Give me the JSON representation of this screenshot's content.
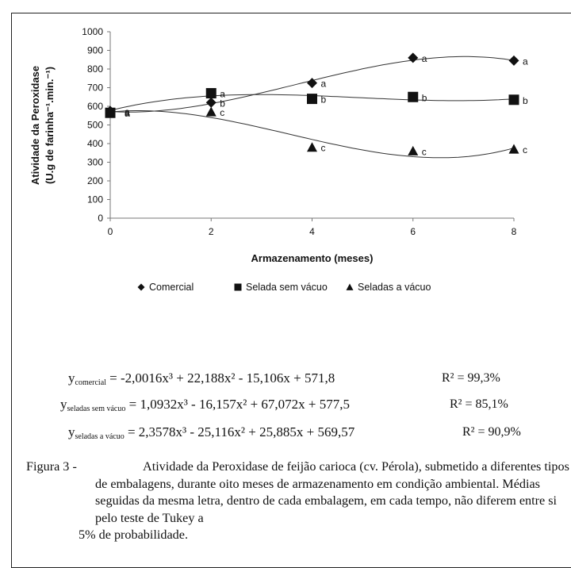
{
  "chart_data": {
    "type": "scatter",
    "xlabel": "Armazenamento (meses)",
    "ylabel_line1": "Atividade da Peroxidase",
    "ylabel_line2": "(U.g de farinha⁻¹.min.⁻¹)",
    "x_ticks": [
      0,
      2,
      4,
      6,
      8
    ],
    "y_ticks": [
      0,
      100,
      200,
      300,
      400,
      500,
      600,
      700,
      800,
      900,
      1000
    ],
    "xlim": [
      0,
      8
    ],
    "ylim": [
      0,
      1000
    ],
    "grid": false,
    "legend_position": "bottom",
    "series": [
      {
        "name": "Comercial",
        "marker": "diamond",
        "x": [
          0,
          2,
          4,
          6,
          8
        ],
        "y": [
          575,
          620,
          725,
          860,
          845
        ],
        "letters": [
          "a",
          "b",
          "a",
          "a",
          "a"
        ],
        "fit": [
          -2.0016,
          22.188,
          -15.106,
          571.8
        ]
      },
      {
        "name": "Selada sem vácuo",
        "marker": "square",
        "x": [
          0,
          2,
          4,
          6,
          8
        ],
        "y": [
          565,
          670,
          640,
          650,
          635
        ],
        "letters": [
          "a",
          "a",
          "b",
          "b",
          "b"
        ],
        "fit": [
          1.0932,
          -16.157,
          67.072,
          577.5
        ]
      },
      {
        "name": "Seladas a vácuo",
        "marker": "triangle",
        "x": [
          0,
          2,
          4,
          6,
          8
        ],
        "y": [
          570,
          570,
          380,
          360,
          370
        ],
        "letters": [
          "a",
          "c",
          "c",
          "c",
          "c"
        ],
        "fit": [
          2.3578,
          -25.116,
          25.885,
          569.57
        ]
      }
    ]
  },
  "equations": [
    {
      "y_sub": "comercial",
      "rhs": "= -2,0016x³ + 22,188x² - 15,106x + 571,8",
      "r2": "R² = 99,3%"
    },
    {
      "y_sub": "seladas sem vácuo",
      "rhs": "= 1,0932x³ - 16,157x² + 67,072x + 577,5",
      "r2": "R² = 85,1%"
    },
    {
      "y_sub": "seladas a vácuo",
      "rhs": "= 2,3578x³ - 25,116x² + 25,885x + 569,57",
      "r2": "R² = 90,9%"
    }
  ],
  "caption": {
    "lead": "Figura 3 -",
    "text": "Atividade da Peroxidase de feijão carioca (cv. Pérola), submetido a diferentes tipos de embalagens, durante oito meses de armazenamento em condição ambiental. Médias seguidas da mesma letra, dentro de cada embalagem, em cada tempo, não diferem entre si pelo teste de Tukey a",
    "last": "5% de probabilidade."
  }
}
